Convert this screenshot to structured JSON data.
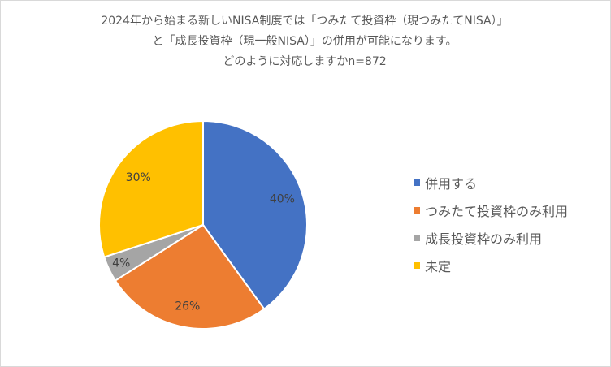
{
  "chart_data": {
    "type": "pie",
    "title_lines": [
      "2024年から始まる新しいNISA制度では「つみたて投資枠（現つみたてNISA）」",
      "と「成長投資枠（現一般NISA）」の併用が可能になります。",
      "どのように対応しますかn=872"
    ],
    "categories": [
      "併用する",
      "つみたて投資枠のみ利用",
      "成長投資枠のみ利用",
      "未定"
    ],
    "values": [
      40,
      26,
      4,
      30
    ],
    "data_labels": [
      "40%",
      "26%",
      "4%",
      "30%"
    ],
    "colors": [
      "#4472c4",
      "#ed7d31",
      "#a5a5a5",
      "#ffc000"
    ],
    "legend_position": "right",
    "start_angle": "12 o'clock",
    "direction": "clockwise"
  }
}
